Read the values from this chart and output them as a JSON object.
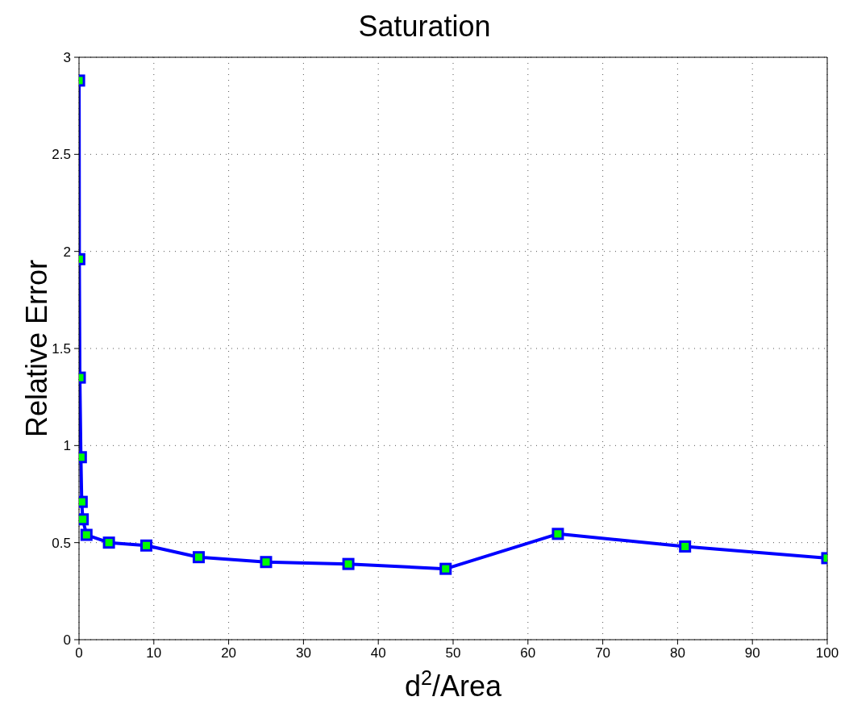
{
  "chart_data": {
    "type": "line",
    "title": "Saturation",
    "xlabel": "d$^{2}$/Area",
    "ylabel": "Relative Error",
    "xlim": [
      0,
      100
    ],
    "xticks": [
      0,
      10,
      20,
      30,
      40,
      50,
      60,
      70,
      80,
      90,
      100
    ],
    "ylim": [
      0,
      3
    ],
    "yticks": [
      0,
      0.5,
      1,
      1.5,
      2,
      2.5,
      3
    ],
    "grid": true,
    "marker": "square",
    "line_style": "solid",
    "series": [
      {
        "color": "#0000ff",
        "x": [
          0.01,
          0.04,
          0.11,
          0.25,
          0.36,
          0.5,
          1,
          4,
          9,
          16,
          25,
          36,
          49,
          64,
          81,
          100
        ],
        "values": [
          2.88,
          1.96,
          1.35,
          0.94,
          0.71,
          0.62,
          0.54,
          0.5,
          0.485,
          0.425,
          0.4,
          0.39,
          0.365,
          0.545,
          0.48,
          0.42
        ]
      }
    ]
  }
}
